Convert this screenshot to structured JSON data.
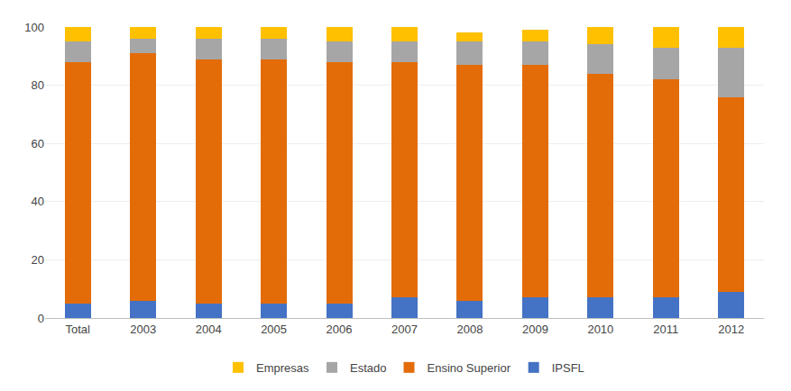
{
  "chart_data": {
    "type": "bar",
    "stacked": true,
    "categories": [
      "Total",
      "2003",
      "2004",
      "2005",
      "2006",
      "2007",
      "2008",
      "2009",
      "2010",
      "2011",
      "2012"
    ],
    "series": [
      {
        "name": "IPSFL",
        "color": "#4472C4",
        "values": [
          5.0,
          6.0,
          5.0,
          5.0,
          5.0,
          7.0,
          6.0,
          7.0,
          7.0,
          7.0,
          9.0
        ]
      },
      {
        "name": "Ensino Superior",
        "color": "#E36C09",
        "values": [
          83.0,
          85.0,
          84.0,
          84.0,
          83.0,
          81.0,
          81.0,
          80.0,
          77.0,
          75.0,
          67.0
        ]
      },
      {
        "name": "Estado",
        "color": "#A6A6A6",
        "values": [
          7.0,
          5.0,
          7.0,
          7.0,
          7.0,
          7.0,
          8.0,
          8.0,
          10.0,
          11.0,
          17.0
        ]
      },
      {
        "name": "Empresas",
        "color": "#FFC000",
        "values": [
          5.0,
          4.0,
          4.0,
          4.0,
          5.0,
          5.0,
          3.0,
          4.0,
          6.0,
          7.0,
          7.0
        ]
      }
    ],
    "ylim": [
      0,
      100
    ],
    "yticks": [
      0,
      20,
      40,
      60,
      80,
      100
    ],
    "grid": true,
    "legend": "bottom"
  }
}
